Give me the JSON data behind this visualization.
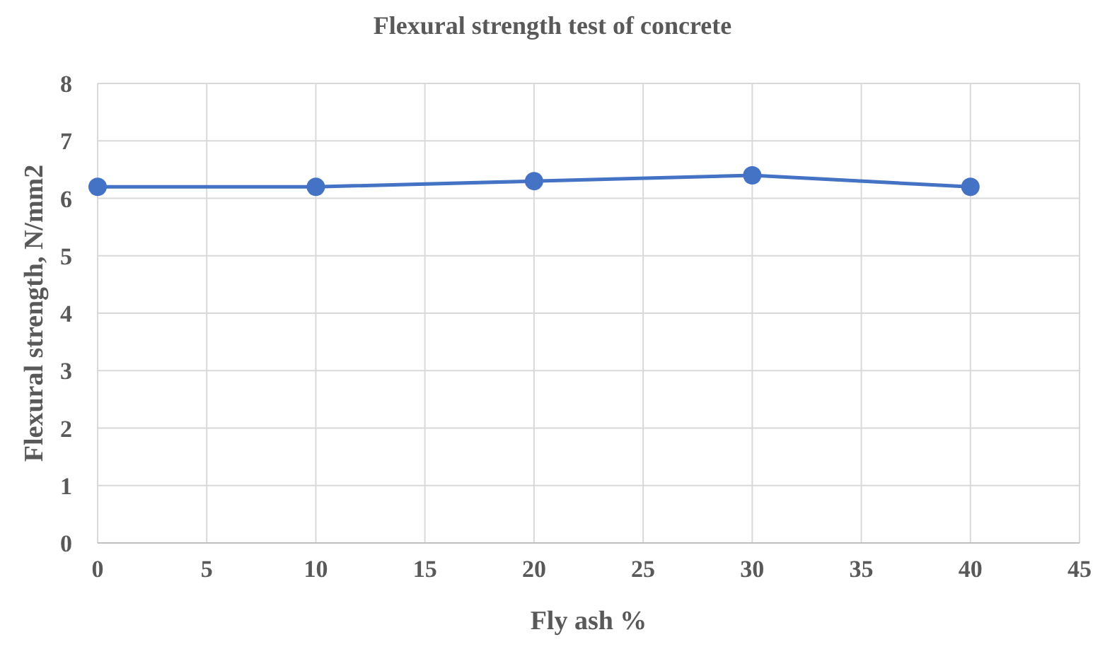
{
  "chart_data": {
    "type": "line",
    "title": "Flexural strength test of concrete",
    "xlabel": "Fly ash %",
    "ylabel": "Flexural strength, N/mm2",
    "x": [
      0,
      10,
      20,
      30,
      40
    ],
    "series": [
      {
        "color": "#4472c4",
        "values": [
          6.2,
          6.2,
          6.3,
          6.4,
          6.2
        ]
      }
    ],
    "xlim": [
      0,
      45
    ],
    "xticks": [
      0,
      5,
      10,
      15,
      20,
      25,
      30,
      35,
      40,
      45
    ],
    "ylim": [
      0,
      8
    ],
    "yticks": [
      0,
      1,
      2,
      3,
      4,
      5,
      6,
      7,
      8
    ],
    "grid": true,
    "marker": "circle",
    "line_style": "solid"
  }
}
